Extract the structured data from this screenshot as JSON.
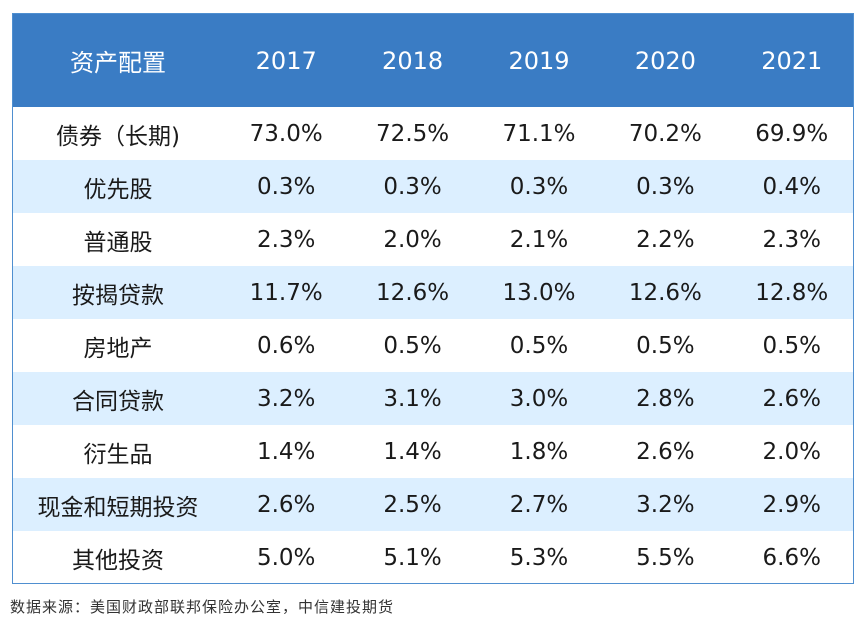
{
  "chart_data": {
    "type": "table",
    "columns": [
      "资产配置",
      "2017",
      "2018",
      "2019",
      "2020",
      "2021"
    ],
    "rows": [
      {
        "label": "债券（长期)",
        "values": [
          "73.0%",
          "72.5%",
          "71.1%",
          "70.2%",
          "69.9%"
        ]
      },
      {
        "label": "优先股",
        "values": [
          "0.3%",
          "0.3%",
          "0.3%",
          "0.3%",
          "0.4%"
        ]
      },
      {
        "label": "普通股",
        "values": [
          "2.3%",
          "2.0%",
          "2.1%",
          "2.2%",
          "2.3%"
        ]
      },
      {
        "label": "按揭贷款",
        "values": [
          "11.7%",
          "12.6%",
          "13.0%",
          "12.6%",
          "12.8%"
        ]
      },
      {
        "label": "房地产",
        "values": [
          "0.6%",
          "0.5%",
          "0.5%",
          "0.5%",
          "0.5%"
        ]
      },
      {
        "label": "合同贷款",
        "values": [
          "3.2%",
          "3.1%",
          "3.0%",
          "2.8%",
          "2.6%"
        ]
      },
      {
        "label": "衍生品",
        "values": [
          "1.4%",
          "1.4%",
          "1.8%",
          "2.6%",
          "2.0%"
        ]
      },
      {
        "label": "现金和短期投资",
        "values": [
          "2.6%",
          "2.5%",
          "2.7%",
          "3.2%",
          "2.9%"
        ]
      },
      {
        "label": "其他投资",
        "values": [
          "5.0%",
          "5.1%",
          "5.3%",
          "5.5%",
          "6.6%"
        ]
      }
    ],
    "source": "数据来源：美国财政部联邦保险办公室，中信建投期货"
  },
  "colors": {
    "header_bg": "#3a7cc4",
    "header_text": "#ffffff",
    "stripe": "#dcefff",
    "border": "#4f8fd0"
  }
}
